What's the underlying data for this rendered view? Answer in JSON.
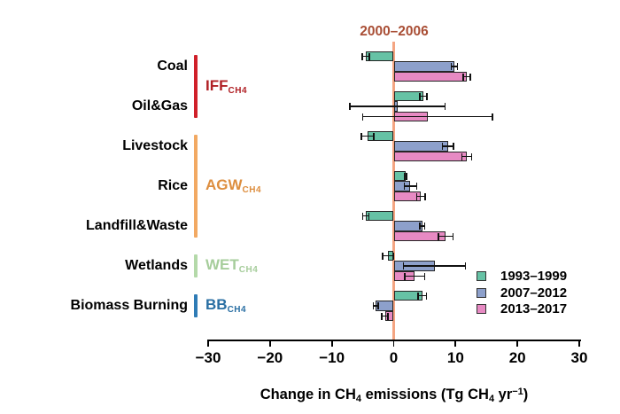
{
  "chart_data": {
    "type": "bar",
    "orientation": "horizontal",
    "categories": [
      "Coal",
      "Oil&Gas",
      "Livestock",
      "Rice",
      "Landfill&Waste",
      "Wetlands",
      "Biomass Burning"
    ],
    "category_groups": [
      {
        "label": "IFF",
        "subscript": "CH4",
        "text_color": "#b01f24",
        "line_color": "#d0202a",
        "rows": [
          0,
          1
        ]
      },
      {
        "label": "AGW",
        "subscript": "CH4",
        "text_color": "#dd8e3f",
        "line_color": "#f2a963",
        "rows": [
          2,
          4
        ]
      },
      {
        "label": "WET",
        "subscript": "CH4",
        "text_color": "#a6cd9b",
        "line_color": "#b4d9a9",
        "rows": [
          5,
          5
        ]
      },
      {
        "label": "BB",
        "subscript": "CH4",
        "text_color": "#2a6fa3",
        "line_color": "#2f7cb6",
        "rows": [
          6,
          6
        ]
      }
    ],
    "series": [
      {
        "name": "1993–1999",
        "color": "#66c2a5",
        "values": [
          -4.5,
          4.8,
          -4.2,
          1.9,
          -4.5,
          -0.9,
          4.6
        ],
        "errors": [
          0.6,
          0.6,
          1.0,
          0.2,
          0.5,
          0.9,
          0.7
        ]
      },
      {
        "name": "2007–2012",
        "color": "#8da0cb",
        "values": [
          9.8,
          0.6,
          8.8,
          2.7,
          4.6,
          6.6,
          -2.9
        ],
        "errors": [
          0.5,
          7.7,
          0.9,
          1.0,
          0.4,
          5.0,
          0.4
        ]
      },
      {
        "name": "2013–2017",
        "color": "#e78ac3",
        "values": [
          11.8,
          5.5,
          11.8,
          4.4,
          8.4,
          3.4,
          -1.4
        ],
        "errors": [
          0.6,
          10.5,
          0.8,
          0.7,
          1.2,
          1.6,
          0.5
        ]
      }
    ],
    "reference_line": {
      "x": 0,
      "label": "2000–2006",
      "line_color": "#f4a582",
      "label_color": "#a94e35"
    },
    "xlim": [
      -30,
      30
    ],
    "xticks": [
      -30,
      -20,
      -10,
      0,
      10,
      20,
      30
    ],
    "xlabel": "Change in CH4 emissions (Tg CH4 yr−1)",
    "xlabel_parts": {
      "p1": "Change in CH",
      "s1": "4",
      "p2": " emissions (Tg CH",
      "s2": "4",
      "p3": " yr",
      "sup": "−1",
      "p4": ")"
    },
    "legend_position": "lower right",
    "grid": false
  }
}
